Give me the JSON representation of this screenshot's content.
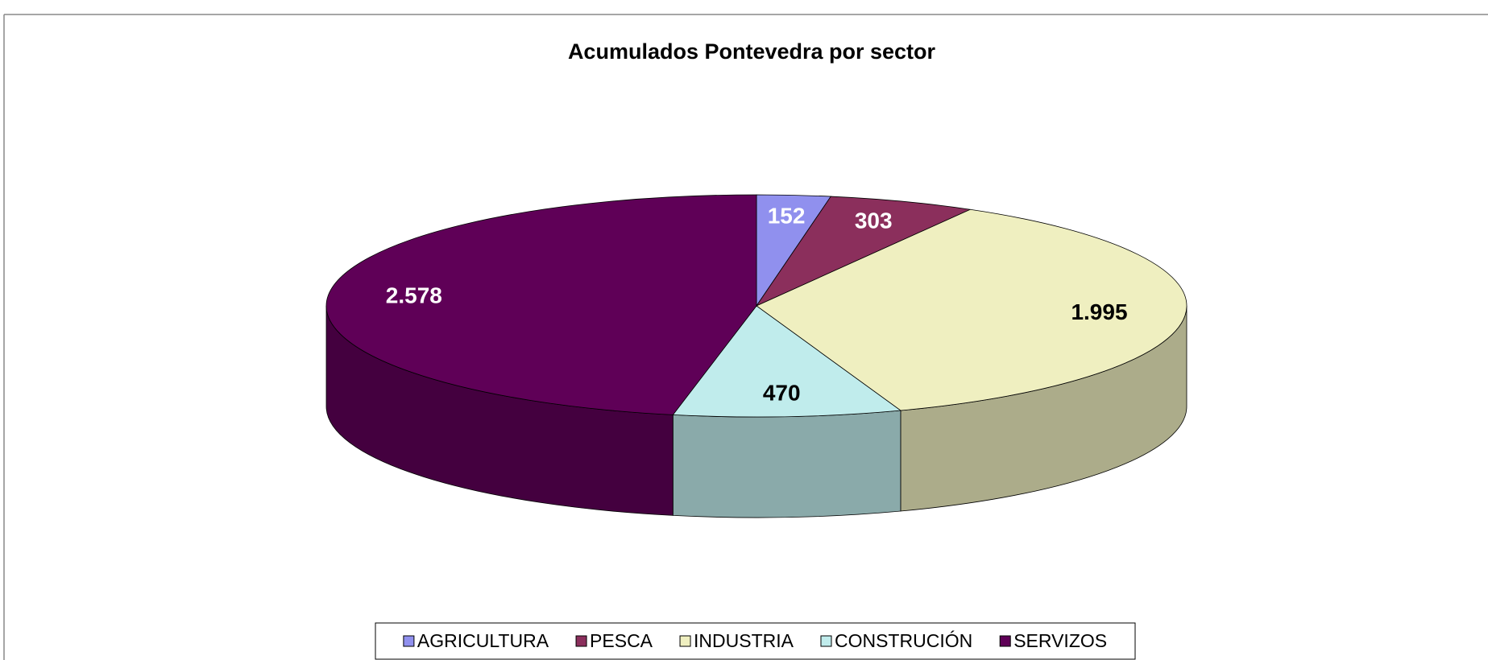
{
  "chart_data": {
    "type": "pie3d",
    "title": "Acumulados Pontevedra por sector",
    "categories": [
      "AGRICULTURA",
      "PESCA",
      "INDUSTRIA",
      "CONSTRUCIÓN",
      "SERVIZOS"
    ],
    "values": [
      152,
      303,
      1995,
      470,
      2578
    ],
    "value_labels": [
      "152",
      "303",
      "1.995",
      "470",
      "2.578"
    ],
    "colors": [
      "#9090ee",
      "#8b2f5c",
      "#efefc0",
      "#c0ecec",
      "#5f0057"
    ],
    "label_colors": [
      "#ffffff",
      "#ffffff",
      "#000000",
      "#000000",
      "#ffffff"
    ],
    "legend": "bottom"
  }
}
